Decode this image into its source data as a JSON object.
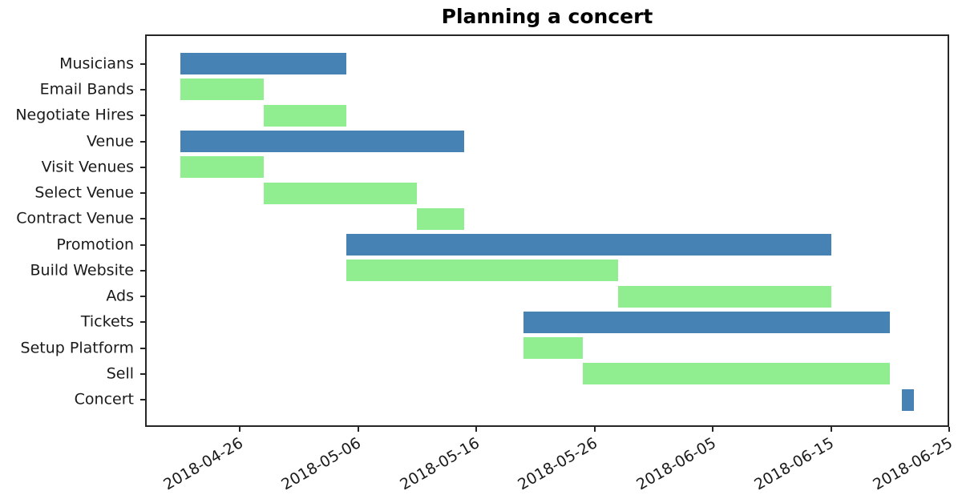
{
  "chart_data": {
    "type": "bar",
    "subtype": "gantt",
    "title": "Planning a concert",
    "xlabel": "",
    "ylabel": "",
    "grid": false,
    "legend": false,
    "xlim": [
      "2018-04-18",
      "2018-06-25"
    ],
    "xticks": [
      "2018-04-26",
      "2018-05-06",
      "2018-05-16",
      "2018-05-26",
      "2018-06-05",
      "2018-06-15",
      "2018-06-25"
    ],
    "xtick_rotation_deg": 30,
    "colors": {
      "phase_bar": "#4682B4",
      "subtask_bar": "#90EE90",
      "frame": "#262626",
      "text": "#1a1a1a"
    },
    "tasks": [
      {
        "name": "Musicians",
        "start": "2018-04-21",
        "end": "2018-05-05",
        "color": "#4682B4"
      },
      {
        "name": "Email Bands",
        "start": "2018-04-21",
        "end": "2018-04-28",
        "color": "#90EE90"
      },
      {
        "name": "Negotiate Hires",
        "start": "2018-04-28",
        "end": "2018-05-05",
        "color": "#90EE90"
      },
      {
        "name": "Venue",
        "start": "2018-04-21",
        "end": "2018-05-15",
        "color": "#4682B4"
      },
      {
        "name": "Visit Venues",
        "start": "2018-04-21",
        "end": "2018-04-28",
        "color": "#90EE90"
      },
      {
        "name": "Select Venue",
        "start": "2018-04-28",
        "end": "2018-05-11",
        "color": "#90EE90"
      },
      {
        "name": "Contract Venue",
        "start": "2018-05-11",
        "end": "2018-05-15",
        "color": "#90EE90"
      },
      {
        "name": "Promotion",
        "start": "2018-05-05",
        "end": "2018-06-15",
        "color": "#4682B4"
      },
      {
        "name": "Build Website",
        "start": "2018-05-05",
        "end": "2018-05-28",
        "color": "#90EE90"
      },
      {
        "name": "Ads",
        "start": "2018-05-28",
        "end": "2018-06-15",
        "color": "#90EE90"
      },
      {
        "name": "Tickets",
        "start": "2018-05-20",
        "end": "2018-06-20",
        "color": "#4682B4"
      },
      {
        "name": "Setup Platform",
        "start": "2018-05-20",
        "end": "2018-05-25",
        "color": "#90EE90"
      },
      {
        "name": "Sell",
        "start": "2018-05-25",
        "end": "2018-06-20",
        "color": "#90EE90"
      },
      {
        "name": "Concert",
        "start": "2018-06-21",
        "end": "2018-06-22",
        "color": "#4682B4"
      }
    ]
  }
}
